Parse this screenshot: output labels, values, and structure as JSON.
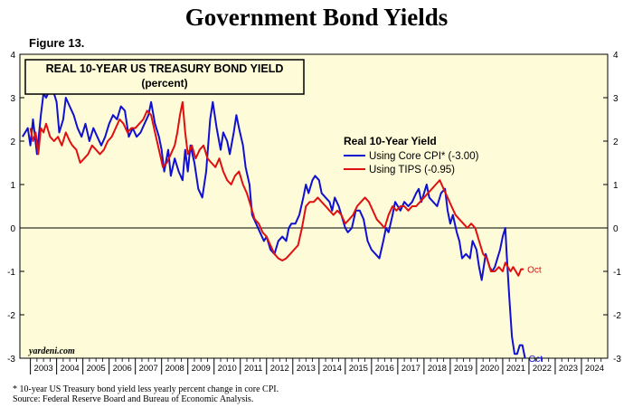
{
  "title": "Government Bond Yields",
  "figure_label": "Figure 13.",
  "footnote": {
    "line1": "*  10-year US Treasury bond yield less yearly percent change in core CPI.",
    "line2": "Source: Federal Reserve Board and Bureau of Economic Analysis."
  },
  "chart_data": {
    "type": "line",
    "title": "REAL 10-YEAR US TREASURY BOND YIELD",
    "subtitle": "(percent)",
    "legend_title": "Real 10-Year Yield",
    "legend_position": "upper-right",
    "watermark": "yardeni.com",
    "xlabel": "",
    "ylabel": "",
    "xlim": [
      2002.6,
      2025.0
    ],
    "ylim": [
      -3,
      4
    ],
    "yticks": [
      -3,
      -2,
      -1,
      0,
      1,
      2,
      3,
      4
    ],
    "xtick_labels": [
      "2003",
      "2004",
      "2005",
      "2006",
      "2007",
      "2008",
      "2009",
      "2010",
      "2011",
      "2012",
      "2013",
      "2014",
      "2015",
      "2016",
      "2017",
      "2018",
      "2019",
      "2020",
      "2021",
      "2022",
      "2023",
      "2024"
    ],
    "zero_line": true,
    "background": "#fdfbd8",
    "series": [
      {
        "name": "Using Core CPI* (-3.00)",
        "color": "#1010d0",
        "end_label": "Oct",
        "points": [
          [
            2002.7,
            2.1
          ],
          [
            2002.9,
            2.3
          ],
          [
            2003.0,
            1.9
          ],
          [
            2003.1,
            2.5
          ],
          [
            2003.25,
            1.7
          ],
          [
            2003.4,
            2.6
          ],
          [
            2003.5,
            3.1
          ],
          [
            2003.6,
            3.0
          ],
          [
            2003.75,
            3.2
          ],
          [
            2003.9,
            3.1
          ],
          [
            2004.0,
            2.9
          ],
          [
            2004.1,
            2.2
          ],
          [
            2004.25,
            2.5
          ],
          [
            2004.35,
            3.0
          ],
          [
            2004.5,
            2.8
          ],
          [
            2004.65,
            2.6
          ],
          [
            2004.8,
            2.3
          ],
          [
            2004.95,
            2.1
          ],
          [
            2005.1,
            2.4
          ],
          [
            2005.25,
            2.0
          ],
          [
            2005.4,
            2.3
          ],
          [
            2005.55,
            2.1
          ],
          [
            2005.7,
            1.9
          ],
          [
            2005.85,
            2.1
          ],
          [
            2006.0,
            2.4
          ],
          [
            2006.15,
            2.6
          ],
          [
            2006.3,
            2.5
          ],
          [
            2006.45,
            2.8
          ],
          [
            2006.6,
            2.7
          ],
          [
            2006.75,
            2.1
          ],
          [
            2006.9,
            2.3
          ],
          [
            2007.05,
            2.1
          ],
          [
            2007.2,
            2.2
          ],
          [
            2007.35,
            2.4
          ],
          [
            2007.5,
            2.6
          ],
          [
            2007.6,
            2.9
          ],
          [
            2007.75,
            2.4
          ],
          [
            2007.9,
            2.1
          ],
          [
            2008.0,
            1.8
          ],
          [
            2008.1,
            1.3
          ],
          [
            2008.25,
            1.8
          ],
          [
            2008.35,
            1.2
          ],
          [
            2008.5,
            1.6
          ],
          [
            2008.65,
            1.3
          ],
          [
            2008.8,
            1.1
          ],
          [
            2008.9,
            1.8
          ],
          [
            2009.0,
            1.3
          ],
          [
            2009.1,
            1.9
          ],
          [
            2009.25,
            1.5
          ],
          [
            2009.4,
            0.9
          ],
          [
            2009.55,
            0.7
          ],
          [
            2009.7,
            1.3
          ],
          [
            2009.85,
            2.5
          ],
          [
            2009.95,
            2.9
          ],
          [
            2010.1,
            2.3
          ],
          [
            2010.25,
            1.8
          ],
          [
            2010.35,
            2.2
          ],
          [
            2010.5,
            2.0
          ],
          [
            2010.6,
            1.7
          ],
          [
            2010.75,
            2.2
          ],
          [
            2010.85,
            2.6
          ],
          [
            2010.95,
            2.3
          ],
          [
            2011.1,
            1.9
          ],
          [
            2011.2,
            1.4
          ],
          [
            2011.35,
            1.0
          ],
          [
            2011.45,
            0.3
          ],
          [
            2011.6,
            0.1
          ],
          [
            2011.75,
            -0.1
          ],
          [
            2011.9,
            -0.3
          ],
          [
            2012.0,
            -0.2
          ],
          [
            2012.15,
            -0.5
          ],
          [
            2012.3,
            -0.6
          ],
          [
            2012.45,
            -0.3
          ],
          [
            2012.6,
            -0.2
          ],
          [
            2012.75,
            -0.3
          ],
          [
            2012.85,
            0.0
          ],
          [
            2012.95,
            0.1
          ],
          [
            2013.1,
            0.1
          ],
          [
            2013.25,
            0.3
          ],
          [
            2013.4,
            0.7
          ],
          [
            2013.5,
            1.0
          ],
          [
            2013.6,
            0.8
          ],
          [
            2013.75,
            1.1
          ],
          [
            2013.85,
            1.2
          ],
          [
            2014.0,
            1.1
          ],
          [
            2014.1,
            0.8
          ],
          [
            2014.25,
            0.7
          ],
          [
            2014.4,
            0.6
          ],
          [
            2014.5,
            0.4
          ],
          [
            2014.6,
            0.7
          ],
          [
            2014.75,
            0.5
          ],
          [
            2014.9,
            0.2
          ],
          [
            2015.0,
            0.0
          ],
          [
            2015.1,
            -0.1
          ],
          [
            2015.25,
            0.0
          ],
          [
            2015.4,
            0.4
          ],
          [
            2015.55,
            0.4
          ],
          [
            2015.7,
            0.2
          ],
          [
            2015.85,
            -0.3
          ],
          [
            2016.0,
            -0.5
          ],
          [
            2016.15,
            -0.6
          ],
          [
            2016.3,
            -0.7
          ],
          [
            2016.45,
            -0.3
          ],
          [
            2016.55,
            0.0
          ],
          [
            2016.65,
            -0.1
          ],
          [
            2016.8,
            0.3
          ],
          [
            2016.9,
            0.6
          ],
          [
            2017.0,
            0.5
          ],
          [
            2017.1,
            0.4
          ],
          [
            2017.25,
            0.6
          ],
          [
            2017.4,
            0.5
          ],
          [
            2017.55,
            0.6
          ],
          [
            2017.7,
            0.8
          ],
          [
            2017.8,
            0.9
          ],
          [
            2017.9,
            0.6
          ],
          [
            2018.0,
            0.8
          ],
          [
            2018.1,
            1.0
          ],
          [
            2018.2,
            0.7
          ],
          [
            2018.35,
            0.6
          ],
          [
            2018.5,
            0.5
          ],
          [
            2018.65,
            0.8
          ],
          [
            2018.8,
            0.9
          ],
          [
            2018.9,
            0.4
          ],
          [
            2019.0,
            0.1
          ],
          [
            2019.1,
            0.3
          ],
          [
            2019.25,
            -0.1
          ],
          [
            2019.35,
            -0.3
          ],
          [
            2019.45,
            -0.7
          ],
          [
            2019.6,
            -0.6
          ],
          [
            2019.75,
            -0.7
          ],
          [
            2019.85,
            -0.3
          ],
          [
            2020.0,
            -0.5
          ],
          [
            2020.1,
            -0.9
          ],
          [
            2020.2,
            -1.2
          ],
          [
            2020.35,
            -0.6
          ],
          [
            2020.5,
            -0.9
          ],
          [
            2020.6,
            -1.0
          ],
          [
            2020.7,
            -0.9
          ],
          [
            2020.8,
            -0.7
          ],
          [
            2020.9,
            -0.5
          ],
          [
            2021.0,
            -0.2
          ],
          [
            2021.1,
            0.0
          ],
          [
            2021.15,
            -0.6
          ],
          [
            2021.25,
            -1.6
          ],
          [
            2021.35,
            -2.5
          ],
          [
            2021.45,
            -2.9
          ],
          [
            2021.55,
            -2.9
          ],
          [
            2021.65,
            -2.7
          ],
          [
            2021.75,
            -2.7
          ],
          [
            2021.85,
            -3.0
          ]
        ]
      },
      {
        "name": "Using TIPS (-0.95)",
        "color": "#e01010",
        "end_label": "Oct",
        "points": [
          [
            2003.0,
            2.3
          ],
          [
            2003.1,
            2.0
          ],
          [
            2003.2,
            2.2
          ],
          [
            2003.3,
            1.7
          ],
          [
            2003.4,
            2.3
          ],
          [
            2003.5,
            2.2
          ],
          [
            2003.6,
            2.4
          ],
          [
            2003.75,
            2.1
          ],
          [
            2003.9,
            2.0
          ],
          [
            2004.05,
            2.1
          ],
          [
            2004.2,
            1.9
          ],
          [
            2004.35,
            2.2
          ],
          [
            2004.5,
            2.0
          ],
          [
            2004.6,
            1.9
          ],
          [
            2004.75,
            1.8
          ],
          [
            2004.9,
            1.5
          ],
          [
            2005.05,
            1.6
          ],
          [
            2005.2,
            1.7
          ],
          [
            2005.35,
            1.9
          ],
          [
            2005.5,
            1.8
          ],
          [
            2005.65,
            1.7
          ],
          [
            2005.8,
            1.8
          ],
          [
            2005.95,
            2.0
          ],
          [
            2006.1,
            2.1
          ],
          [
            2006.25,
            2.3
          ],
          [
            2006.4,
            2.5
          ],
          [
            2006.55,
            2.4
          ],
          [
            2006.7,
            2.2
          ],
          [
            2006.85,
            2.3
          ],
          [
            2007.0,
            2.3
          ],
          [
            2007.15,
            2.4
          ],
          [
            2007.3,
            2.5
          ],
          [
            2007.45,
            2.7
          ],
          [
            2007.6,
            2.6
          ],
          [
            2007.75,
            2.2
          ],
          [
            2007.9,
            1.8
          ],
          [
            2008.05,
            1.4
          ],
          [
            2008.2,
            1.5
          ],
          [
            2008.35,
            1.7
          ],
          [
            2008.5,
            1.9
          ],
          [
            2008.6,
            2.2
          ],
          [
            2008.7,
            2.6
          ],
          [
            2008.8,
            2.9
          ],
          [
            2008.9,
            2.2
          ],
          [
            2009.0,
            1.7
          ],
          [
            2009.15,
            1.9
          ],
          [
            2009.3,
            1.6
          ],
          [
            2009.45,
            1.8
          ],
          [
            2009.6,
            1.9
          ],
          [
            2009.75,
            1.6
          ],
          [
            2009.9,
            1.5
          ],
          [
            2010.05,
            1.4
          ],
          [
            2010.2,
            1.6
          ],
          [
            2010.35,
            1.3
          ],
          [
            2010.5,
            1.1
          ],
          [
            2010.65,
            1.0
          ],
          [
            2010.8,
            1.2
          ],
          [
            2010.95,
            1.3
          ],
          [
            2011.1,
            1.0
          ],
          [
            2011.25,
            0.8
          ],
          [
            2011.4,
            0.5
          ],
          [
            2011.55,
            0.2
          ],
          [
            2011.7,
            0.1
          ],
          [
            2011.85,
            -0.1
          ],
          [
            2012.0,
            -0.2
          ],
          [
            2012.15,
            -0.4
          ],
          [
            2012.3,
            -0.6
          ],
          [
            2012.45,
            -0.7
          ],
          [
            2012.6,
            -0.75
          ],
          [
            2012.75,
            -0.7
          ],
          [
            2012.9,
            -0.6
          ],
          [
            2013.05,
            -0.5
          ],
          [
            2013.2,
            -0.4
          ],
          [
            2013.35,
            0.0
          ],
          [
            2013.5,
            0.5
          ],
          [
            2013.65,
            0.6
          ],
          [
            2013.8,
            0.6
          ],
          [
            2013.95,
            0.7
          ],
          [
            2014.1,
            0.6
          ],
          [
            2014.25,
            0.5
          ],
          [
            2014.4,
            0.4
          ],
          [
            2014.55,
            0.3
          ],
          [
            2014.7,
            0.4
          ],
          [
            2014.85,
            0.3
          ],
          [
            2015.0,
            0.1
          ],
          [
            2015.15,
            0.2
          ],
          [
            2015.3,
            0.3
          ],
          [
            2015.45,
            0.5
          ],
          [
            2015.6,
            0.6
          ],
          [
            2015.75,
            0.7
          ],
          [
            2015.9,
            0.6
          ],
          [
            2016.05,
            0.4
          ],
          [
            2016.2,
            0.2
          ],
          [
            2016.35,
            0.1
          ],
          [
            2016.5,
            0.0
          ],
          [
            2016.65,
            0.3
          ],
          [
            2016.8,
            0.5
          ],
          [
            2016.95,
            0.4
          ],
          [
            2017.1,
            0.5
          ],
          [
            2017.25,
            0.5
          ],
          [
            2017.4,
            0.4
          ],
          [
            2017.55,
            0.5
          ],
          [
            2017.7,
            0.5
          ],
          [
            2017.85,
            0.6
          ],
          [
            2018.0,
            0.7
          ],
          [
            2018.15,
            0.8
          ],
          [
            2018.3,
            0.9
          ],
          [
            2018.45,
            1.0
          ],
          [
            2018.6,
            1.1
          ],
          [
            2018.75,
            0.9
          ],
          [
            2018.9,
            0.7
          ],
          [
            2019.05,
            0.5
          ],
          [
            2019.2,
            0.3
          ],
          [
            2019.35,
            0.2
          ],
          [
            2019.5,
            0.1
          ],
          [
            2019.65,
            0.0
          ],
          [
            2019.8,
            0.1
          ],
          [
            2019.95,
            0.0
          ],
          [
            2020.1,
            -0.3
          ],
          [
            2020.25,
            -0.6
          ],
          [
            2020.4,
            -0.7
          ],
          [
            2020.55,
            -1.0
          ],
          [
            2020.7,
            -1.0
          ],
          [
            2020.85,
            -0.9
          ],
          [
            2021.0,
            -1.0
          ],
          [
            2021.1,
            -0.8
          ],
          [
            2021.2,
            -0.9
          ],
          [
            2021.3,
            -1.0
          ],
          [
            2021.4,
            -0.9
          ],
          [
            2021.5,
            -1.0
          ],
          [
            2021.6,
            -1.1
          ],
          [
            2021.7,
            -0.95
          ],
          [
            2021.8,
            -0.95
          ]
        ]
      }
    ]
  }
}
